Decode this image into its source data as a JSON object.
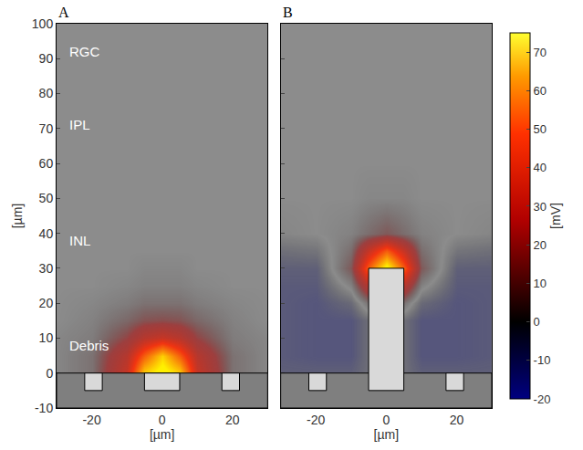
{
  "chart_data": [
    {
      "type": "heatmap",
      "panel": "A",
      "xlabel": "[µm]",
      "ylabel": "[µm]",
      "xlim": [
        -30,
        30
      ],
      "ylim": [
        -10,
        100
      ],
      "xticks": [
        -20,
        0,
        20
      ],
      "yticks": [
        -10,
        0,
        10,
        20,
        30,
        40,
        50,
        60,
        70,
        80,
        90,
        100
      ],
      "x": [
        -30,
        -20,
        -10,
        -5,
        0,
        5,
        10,
        20,
        30
      ],
      "y": [
        0,
        5,
        10,
        15,
        20,
        25,
        30,
        35,
        40,
        50,
        60,
        80,
        100
      ],
      "z": [
        [
          1,
          5,
          30,
          70,
          80,
          70,
          30,
          5,
          1
        ],
        [
          1,
          5,
          25,
          50,
          70,
          50,
          25,
          5,
          1
        ],
        [
          1,
          3,
          14,
          25,
          30,
          25,
          14,
          3,
          1
        ],
        [
          0,
          2,
          7,
          11,
          12,
          11,
          7,
          2,
          0
        ],
        [
          0,
          1,
          3,
          5,
          5,
          5,
          3,
          1,
          0
        ],
        [
          0,
          0,
          1,
          2,
          2,
          2,
          1,
          0,
          0
        ],
        [
          0,
          0,
          0,
          1,
          1,
          1,
          0,
          0,
          0
        ],
        [
          0,
          0,
          0,
          0,
          0,
          0,
          0,
          0,
          0
        ],
        [
          0,
          0,
          0,
          0,
          0,
          0,
          0,
          0,
          0
        ],
        [
          0,
          0,
          0,
          0,
          0,
          0,
          0,
          0,
          0
        ],
        [
          0,
          0,
          0,
          0,
          0,
          0,
          0,
          0,
          0
        ],
        [
          0,
          0,
          0,
          0,
          0,
          0,
          0,
          0,
          0
        ],
        [
          0,
          0,
          0,
          0,
          0,
          0,
          0,
          0,
          0
        ]
      ],
      "annotations": [
        {
          "text": "RGC",
          "x": -27,
          "y": 92
        },
        {
          "text": "IPL",
          "x": -27,
          "y": 71
        },
        {
          "text": "INL",
          "x": -27,
          "y": 38
        },
        {
          "text": "Debris",
          "x": -27,
          "y": 8
        }
      ],
      "structures": [
        {
          "x": [
            -30,
            30
          ],
          "y": [
            -10,
            0
          ],
          "color": "#7f7f7f"
        },
        {
          "x": [
            -22,
            -17
          ],
          "y": [
            -5,
            0
          ],
          "color": "#d9d9d9"
        },
        {
          "x": [
            -5,
            5
          ],
          "y": [
            -5,
            0
          ],
          "color": "#d9d9d9"
        },
        {
          "x": [
            17,
            22
          ],
          "y": [
            -5,
            0
          ],
          "color": "#d9d9d9"
        }
      ]
    },
    {
      "type": "heatmap",
      "panel": "B",
      "xlabel": "[µm]",
      "tick_labels": "x",
      "xlim": [
        -30,
        30
      ],
      "ylim": [
        -10,
        100
      ],
      "xticks": [
        -20,
        0,
        20
      ],
      "yticks": [
        -10,
        0,
        10,
        20,
        30,
        40,
        50,
        60,
        70,
        80,
        90,
        100
      ],
      "x": [
        -30,
        -20,
        -10,
        -5,
        0,
        5,
        10,
        20,
        30
      ],
      "y": [
        0,
        5,
        10,
        15,
        20,
        25,
        30,
        35,
        40,
        50,
        60,
        80,
        100
      ],
      "z": [
        [
          -8,
          -8,
          -8,
          -5,
          0,
          -5,
          -8,
          -8,
          -8
        ],
        [
          -9,
          -10,
          -10,
          -5,
          0,
          -5,
          -10,
          -10,
          -9
        ],
        [
          -9,
          -10,
          -10,
          -5,
          0,
          -5,
          -10,
          -10,
          -9
        ],
        [
          -9,
          -10,
          -10,
          -5,
          0,
          -5,
          -10,
          -10,
          -9
        ],
        [
          -9,
          -10,
          -6,
          5,
          10,
          5,
          -6,
          -10,
          -9
        ],
        [
          -9,
          -9,
          2,
          25,
          50,
          25,
          2,
          -9,
          -9
        ],
        [
          -8,
          -8,
          10,
          50,
          80,
          50,
          10,
          -8,
          -8
        ],
        [
          -5,
          -4,
          6,
          30,
          50,
          30,
          6,
          -4,
          -5
        ],
        [
          -1,
          0,
          2,
          6,
          10,
          6,
          2,
          0,
          -1
        ],
        [
          0,
          0,
          0,
          1,
          1,
          1,
          0,
          0,
          0
        ],
        [
          0,
          0,
          0,
          0,
          0,
          0,
          0,
          0,
          0
        ],
        [
          0,
          0,
          0,
          0,
          0,
          0,
          0,
          0,
          0
        ],
        [
          0,
          0,
          0,
          0,
          0,
          0,
          0,
          0,
          0
        ]
      ],
      "structures": [
        {
          "x": [
            -30,
            30
          ],
          "y": [
            -10,
            0
          ],
          "color": "#7f7f7f"
        },
        {
          "x": [
            -22,
            -17
          ],
          "y": [
            -5,
            0
          ],
          "color": "#d9d9d9"
        },
        {
          "x": [
            17,
            22
          ],
          "y": [
            -5,
            0
          ],
          "color": "#d9d9d9"
        },
        {
          "x": [
            -5,
            5
          ],
          "y": [
            -5,
            30
          ],
          "color": "#d9d9d9"
        }
      ],
      "colorbar": {
        "label": "[mV]",
        "range": [
          -20,
          75
        ],
        "ticks": [
          -20,
          -10,
          0,
          10,
          20,
          30,
          40,
          50,
          60,
          70
        ]
      }
    }
  ]
}
